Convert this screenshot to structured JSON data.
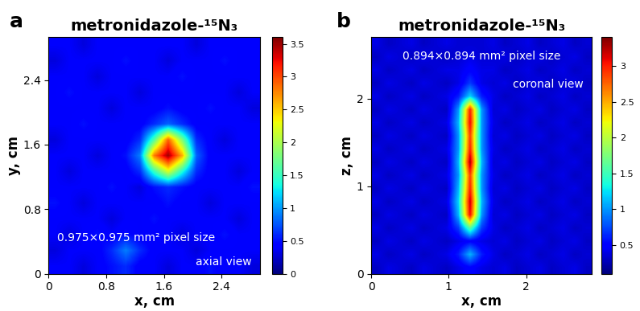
{
  "chart_data": [
    {
      "type": "heatmap",
      "panel": "a",
      "title": "metronidazole-¹⁵N₃",
      "x_label": "x, cm",
      "y_label": "y, cm",
      "annotations": [
        "0.975×0.975 mm² pixel size",
        "axial view"
      ],
      "xlim": [
        0,
        2.93
      ],
      "ylim": [
        0,
        2.93
      ],
      "xticks": [
        0,
        0.8,
        1.6,
        2.4
      ],
      "yticks": [
        0,
        0.8,
        1.6,
        2.4
      ],
      "color_range": [
        0,
        3.6
      ],
      "color_ticks": [
        0,
        0.5,
        1,
        1.5,
        2,
        2.5,
        3,
        3.5
      ],
      "cells": [
        [
          0.4,
          0.4,
          0.3,
          0.4,
          0.5,
          0.6,
          0.4,
          0.4,
          0.3,
          0.4,
          0.4,
          0.5,
          0.4,
          0.4,
          0.3
        ],
        [
          0.3,
          0.4,
          0.4,
          0.4,
          0.6,
          0.9,
          0.6,
          0.4,
          0.4,
          0.4,
          0.3,
          0.4,
          0.4,
          0.4,
          0.4
        ],
        [
          0.4,
          0.3,
          0.4,
          0.5,
          0.4,
          0.5,
          0.4,
          0.4,
          0.4,
          0.3,
          0.4,
          0.4,
          0.5,
          0.4,
          0.4
        ],
        [
          0.4,
          0.4,
          0.4,
          0.4,
          0.3,
          0.4,
          0.4,
          0.5,
          0.4,
          0.4,
          0.4,
          0.4,
          0.4,
          0.3,
          0.4
        ],
        [
          0.5,
          0.4,
          0.3,
          0.4,
          0.4,
          0.4,
          0.4,
          0.4,
          0.5,
          0.4,
          0.4,
          0.3,
          0.4,
          0.4,
          0.4
        ],
        [
          0.4,
          0.4,
          0.4,
          0.4,
          0.5,
          0.4,
          0.3,
          0.5,
          0.6,
          0.5,
          0.4,
          0.4,
          0.4,
          0.4,
          0.5
        ],
        [
          0.4,
          0.3,
          0.4,
          0.4,
          0.4,
          0.4,
          0.6,
          1.5,
          2.2,
          1.4,
          0.6,
          0.4,
          0.4,
          0.3,
          0.4
        ],
        [
          0.4,
          0.4,
          0.4,
          0.3,
          0.4,
          0.5,
          0.9,
          2.8,
          3.5,
          2.6,
          0.8,
          0.4,
          0.4,
          0.4,
          0.4
        ],
        [
          0.3,
          0.4,
          0.4,
          0.4,
          0.4,
          0.4,
          0.6,
          1.6,
          2.9,
          1.8,
          0.6,
          0.4,
          0.3,
          0.4,
          0.4
        ],
        [
          0.4,
          0.4,
          0.5,
          0.4,
          0.4,
          0.4,
          0.4,
          0.6,
          0.8,
          0.6,
          0.4,
          0.4,
          0.4,
          0.4,
          0.4
        ],
        [
          0.4,
          0.4,
          0.4,
          0.4,
          0.3,
          0.4,
          0.4,
          0.4,
          0.5,
          0.4,
          0.4,
          0.5,
          0.4,
          0.4,
          0.3
        ],
        [
          0.4,
          0.5,
          0.4,
          0.4,
          0.4,
          0.4,
          0.3,
          0.4,
          0.4,
          0.4,
          0.4,
          0.4,
          0.4,
          0.3,
          0.4
        ],
        [
          0.4,
          0.4,
          0.4,
          0.3,
          0.4,
          0.4,
          0.4,
          0.4,
          0.4,
          0.5,
          0.4,
          0.4,
          0.4,
          0.4,
          0.4
        ],
        [
          0.3,
          0.4,
          0.4,
          0.4,
          0.4,
          0.5,
          0.4,
          0.4,
          0.3,
          0.4,
          0.4,
          0.4,
          0.5,
          0.4,
          0.4
        ],
        [
          0.4,
          0.4,
          0.3,
          0.4,
          0.4,
          0.4,
          0.4,
          0.4,
          0.4,
          0.4,
          0.3,
          0.4,
          0.4,
          0.4,
          0.4
        ]
      ]
    },
    {
      "type": "heatmap",
      "panel": "b",
      "title": "metronidazole-¹⁵N₃",
      "x_label": "x, cm",
      "y_label": "z, cm",
      "annotations": [
        "0.894×0.894 mm² pixel size",
        "coronal view"
      ],
      "xlim": [
        0,
        2.85
      ],
      "ylim": [
        0,
        2.7
      ],
      "xticks": [
        0,
        1,
        2
      ],
      "yticks": [
        0,
        1,
        2
      ],
      "color_range": [
        0.1,
        3.4
      ],
      "color_ticks": [
        0.5,
        1,
        1.5,
        2,
        2.5,
        3
      ],
      "cells": [
        [
          0.3,
          0.4,
          0.35,
          0.3,
          0.4,
          0.35,
          0.3,
          0.4,
          0.5,
          0.4,
          0.35,
          0.4,
          0.3,
          0.35,
          0.4,
          0.3,
          0.35,
          0.4,
          0.3
        ],
        [
          0.4,
          0.3,
          0.35,
          0.4,
          0.3,
          0.35,
          0.4,
          0.6,
          1.1,
          0.6,
          0.4,
          0.3,
          0.35,
          0.4,
          0.3,
          0.35,
          0.4,
          0.3,
          0.35
        ],
        [
          0.3,
          0.4,
          0.35,
          0.3,
          0.4,
          0.35,
          0.3,
          0.4,
          0.5,
          0.4,
          0.35,
          0.4,
          0.3,
          0.35,
          0.4,
          0.3,
          0.35,
          0.4,
          0.3
        ],
        [
          0.4,
          0.3,
          0.35,
          0.4,
          0.3,
          0.35,
          0.4,
          0.7,
          1.6,
          0.7,
          0.4,
          0.3,
          0.35,
          0.4,
          0.3,
          0.35,
          0.4,
          0.3,
          0.35
        ],
        [
          0.3,
          0.4,
          0.35,
          0.3,
          0.4,
          0.35,
          0.3,
          1.1,
          3.1,
          1.0,
          0.35,
          0.4,
          0.3,
          0.35,
          0.4,
          0.3,
          0.35,
          0.4,
          0.3
        ],
        [
          0.4,
          0.3,
          0.35,
          0.4,
          0.3,
          0.35,
          0.4,
          1.2,
          3.2,
          1.1,
          0.4,
          0.3,
          0.35,
          0.4,
          0.3,
          0.35,
          0.4,
          0.3,
          0.35
        ],
        [
          0.3,
          0.4,
          0.35,
          0.3,
          0.4,
          0.35,
          0.3,
          1.1,
          3.0,
          1.0,
          0.35,
          0.4,
          0.3,
          0.35,
          0.4,
          0.3,
          0.35,
          0.4,
          0.3
        ],
        [
          0.4,
          0.3,
          0.35,
          0.4,
          0.3,
          0.35,
          0.4,
          1.0,
          2.9,
          1.0,
          0.4,
          0.3,
          0.35,
          0.4,
          0.3,
          0.35,
          0.4,
          0.3,
          0.35
        ],
        [
          0.3,
          0.4,
          0.35,
          0.3,
          0.4,
          0.35,
          0.3,
          1.1,
          3.3,
          1.1,
          0.35,
          0.4,
          0.3,
          0.35,
          0.4,
          0.3,
          0.35,
          0.4,
          0.3
        ],
        [
          0.4,
          0.3,
          0.35,
          0.4,
          0.3,
          0.35,
          0.4,
          1.0,
          3.0,
          1.0,
          0.4,
          0.3,
          0.35,
          0.4,
          0.3,
          0.35,
          0.4,
          0.3,
          0.35
        ],
        [
          0.3,
          0.4,
          0.35,
          0.3,
          0.4,
          0.35,
          0.3,
          1.0,
          2.9,
          1.0,
          0.35,
          0.4,
          0.3,
          0.35,
          0.4,
          0.3,
          0.35,
          0.4,
          0.3
        ],
        [
          0.4,
          0.3,
          0.35,
          0.4,
          0.3,
          0.35,
          0.4,
          1.1,
          3.1,
          1.0,
          0.4,
          0.3,
          0.35,
          0.4,
          0.3,
          0.35,
          0.4,
          0.3,
          0.35
        ],
        [
          0.3,
          0.4,
          0.35,
          0.3,
          0.4,
          0.35,
          0.3,
          1.0,
          3.0,
          1.0,
          0.35,
          0.4,
          0.3,
          0.35,
          0.4,
          0.3,
          0.35,
          0.4,
          0.3
        ],
        [
          0.4,
          0.3,
          0.35,
          0.4,
          0.3,
          0.35,
          0.4,
          0.6,
          1.2,
          0.6,
          0.4,
          0.3,
          0.35,
          0.4,
          0.3,
          0.35,
          0.4,
          0.3,
          0.35
        ],
        [
          0.3,
          0.4,
          0.35,
          0.3,
          0.4,
          0.35,
          0.3,
          0.4,
          0.7,
          0.4,
          0.35,
          0.4,
          0.3,
          0.35,
          0.4,
          0.3,
          0.35,
          0.4,
          0.3
        ],
        [
          0.4,
          0.3,
          0.35,
          0.4,
          0.3,
          0.35,
          0.4,
          0.4,
          0.5,
          0.4,
          0.4,
          0.3,
          0.35,
          0.4,
          0.3,
          0.35,
          0.4,
          0.3,
          0.35
        ],
        [
          0.3,
          0.4,
          0.35,
          0.3,
          0.4,
          0.35,
          0.3,
          0.35,
          0.4,
          0.35,
          0.35,
          0.4,
          0.3,
          0.35,
          0.4,
          0.3,
          0.35,
          0.4,
          0.3
        ],
        [
          0.4,
          0.3,
          0.35,
          0.4,
          0.3,
          0.35,
          0.4,
          0.35,
          0.35,
          0.35,
          0.4,
          0.3,
          0.35,
          0.4,
          0.3,
          0.35,
          0.4,
          0.3,
          0.35
        ]
      ]
    }
  ]
}
